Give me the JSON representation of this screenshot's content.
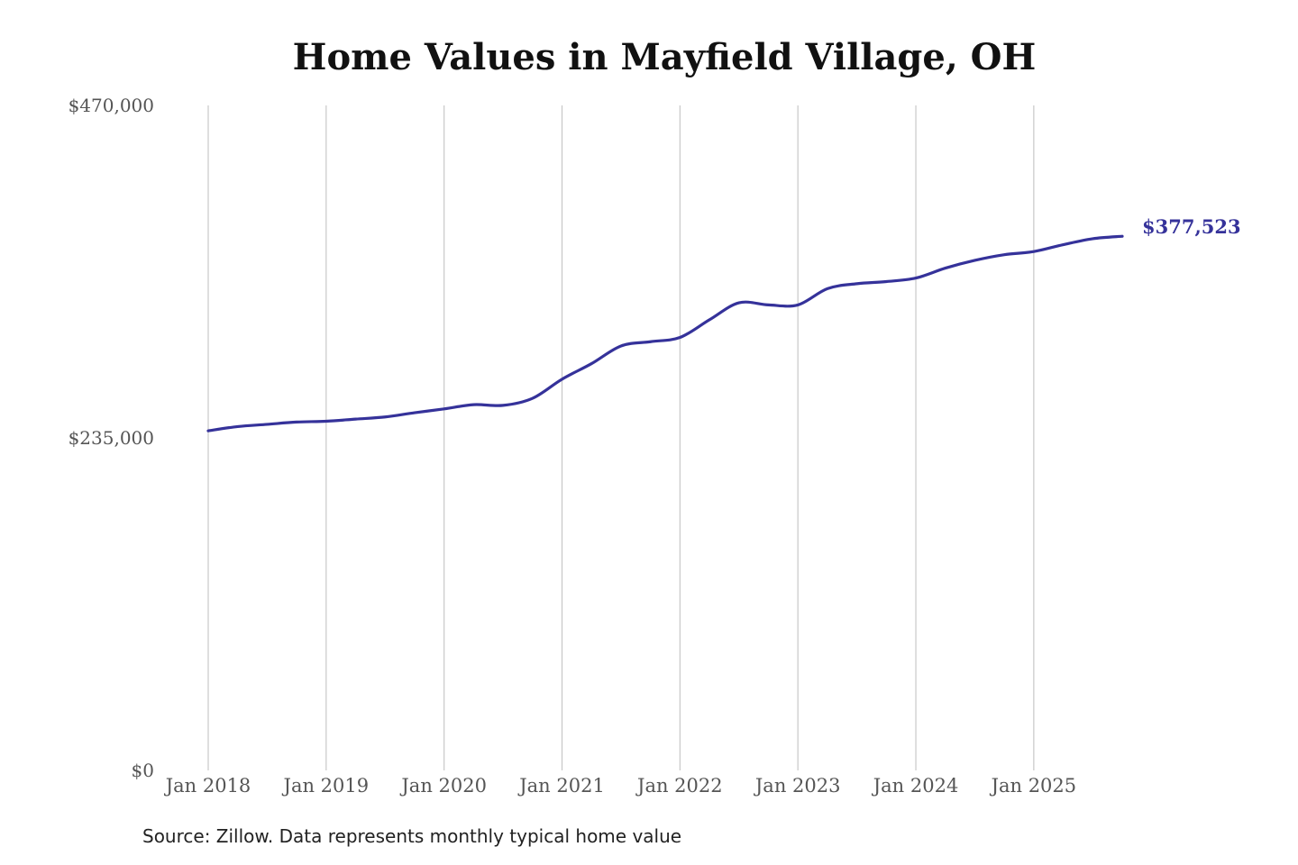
{
  "chart_data": {
    "type": "line",
    "title": "Home Values in Mayfield Village, OH",
    "xlabel": "",
    "ylabel": "",
    "ylim": [
      0,
      470000
    ],
    "y_ticks": [
      {
        "value": 0,
        "label": "$0"
      },
      {
        "value": 235000,
        "label": "$235,000"
      },
      {
        "value": 470000,
        "label": "$470,000"
      }
    ],
    "x_ticks": [
      {
        "date": "2018-01",
        "label": "Jan 2018"
      },
      {
        "date": "2019-01",
        "label": "Jan 2019"
      },
      {
        "date": "2020-01",
        "label": "Jan 2020"
      },
      {
        "date": "2021-01",
        "label": "Jan 2021"
      },
      {
        "date": "2022-01",
        "label": "Jan 2022"
      },
      {
        "date": "2023-01",
        "label": "Jan 2023"
      },
      {
        "date": "2024-01",
        "label": "Jan 2024"
      },
      {
        "date": "2025-01",
        "label": "Jan 2025"
      }
    ],
    "xlim": [
      "2018-01",
      "2025-10"
    ],
    "grid": "vertical",
    "series": [
      {
        "color": "#35329A",
        "points": [
          [
            "2018-01",
            240000
          ],
          [
            "2018-04",
            243000
          ],
          [
            "2018-07",
            244600
          ],
          [
            "2018-10",
            246200
          ],
          [
            "2019-01",
            246800
          ],
          [
            "2019-04",
            248300
          ],
          [
            "2019-07",
            249800
          ],
          [
            "2019-10",
            252800
          ],
          [
            "2020-01",
            255500
          ],
          [
            "2020-04",
            258500
          ],
          [
            "2020-07",
            258000
          ],
          [
            "2020-10",
            263000
          ],
          [
            "2021-01",
            276500
          ],
          [
            "2021-04",
            287500
          ],
          [
            "2021-07",
            300000
          ],
          [
            "2021-10",
            303000
          ],
          [
            "2022-01",
            306000
          ],
          [
            "2022-04",
            318500
          ],
          [
            "2022-07",
            330500
          ],
          [
            "2022-10",
            329000
          ],
          [
            "2023-01",
            329000
          ],
          [
            "2023-04",
            340500
          ],
          [
            "2023-07",
            344000
          ],
          [
            "2023-10",
            345500
          ],
          [
            "2024-01",
            348000
          ],
          [
            "2024-04",
            355000
          ],
          [
            "2024-07",
            360500
          ],
          [
            "2024-10",
            364500
          ],
          [
            "2025-01",
            366700
          ],
          [
            "2025-04",
            371600
          ],
          [
            "2025-07",
            375800
          ],
          [
            "2025-10",
            377523
          ]
        ]
      }
    ],
    "end_label": "$377,523"
  },
  "source_note": "Source: Zillow. Data represents monthly typical home value"
}
